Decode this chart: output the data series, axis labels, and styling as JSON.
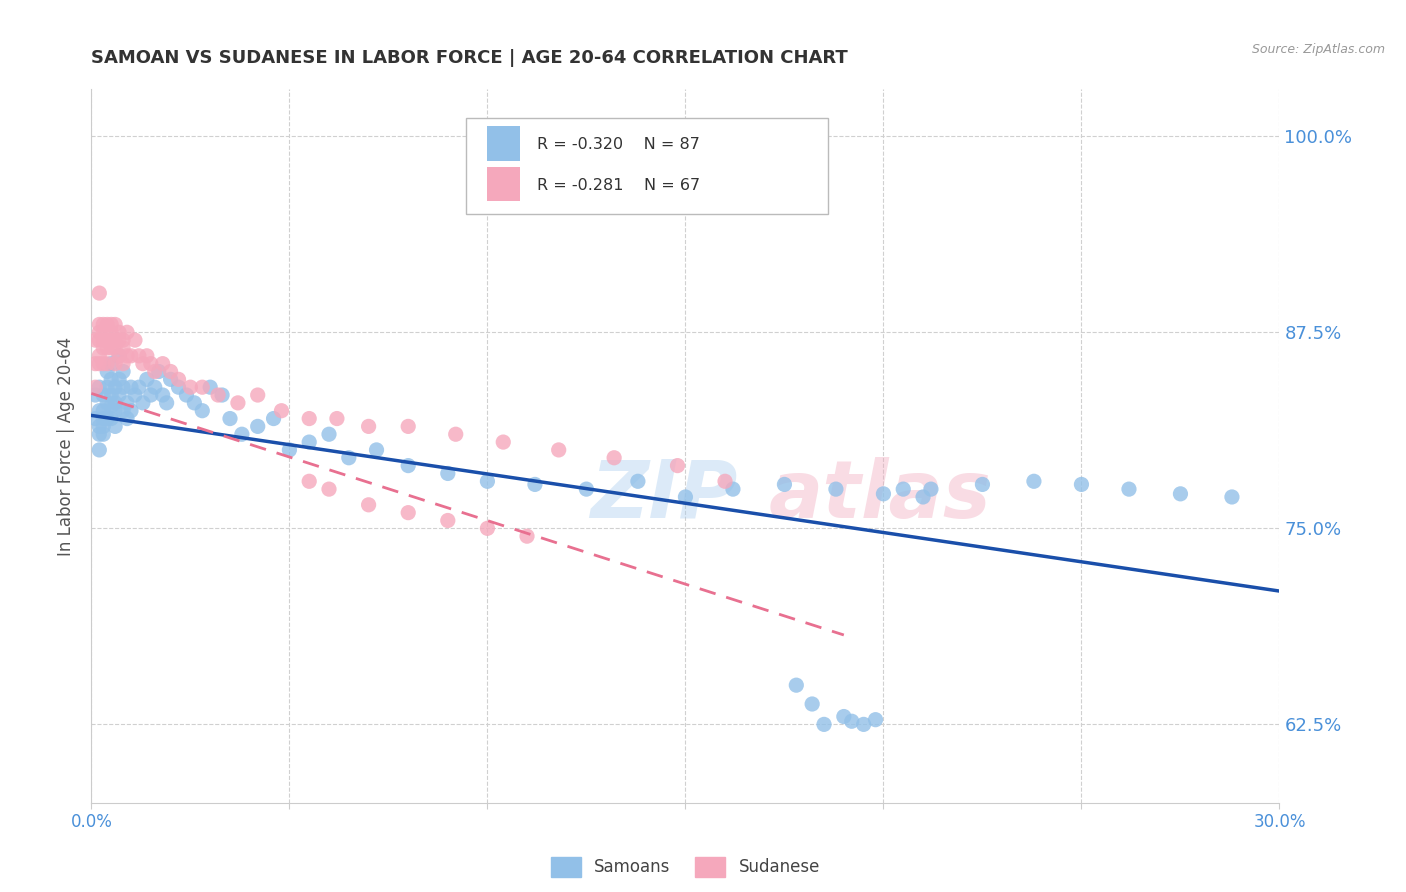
{
  "title": "SAMOAN VS SUDANESE IN LABOR FORCE | AGE 20-64 CORRELATION CHART",
  "source": "Source: ZipAtlas.com",
  "ylabel": "In Labor Force | Age 20-64",
  "xlim": [
    0.0,
    0.3
  ],
  "ylim": [
    0.575,
    1.03
  ],
  "yticks": [
    0.625,
    0.75,
    0.875,
    1.0
  ],
  "ytick_labels": [
    "62.5%",
    "75.0%",
    "87.5%",
    "100.0%"
  ],
  "samoans_R": -0.32,
  "samoans_N": 87,
  "sudanese_R": -0.281,
  "sudanese_N": 67,
  "samoan_color": "#92c0e8",
  "sudanese_color": "#f5a8bc",
  "trend_blue": "#1a4faa",
  "trend_pink": "#e87090",
  "axis_color": "#4a90d9",
  "grid_color": "#d0d0d0",
  "watermark": "ZIPAtlas",
  "samoans_x": [
    0.001,
    0.001,
    0.002,
    0.002,
    0.002,
    0.002,
    0.002,
    0.003,
    0.003,
    0.003,
    0.003,
    0.003,
    0.004,
    0.004,
    0.004,
    0.004,
    0.005,
    0.005,
    0.005,
    0.005,
    0.005,
    0.006,
    0.006,
    0.006,
    0.006,
    0.007,
    0.007,
    0.007,
    0.008,
    0.008,
    0.008,
    0.009,
    0.009,
    0.01,
    0.01,
    0.011,
    0.012,
    0.013,
    0.014,
    0.015,
    0.016,
    0.017,
    0.018,
    0.019,
    0.02,
    0.022,
    0.024,
    0.026,
    0.028,
    0.03,
    0.033,
    0.035,
    0.038,
    0.042,
    0.046,
    0.05,
    0.055,
    0.06,
    0.065,
    0.072,
    0.08,
    0.09,
    0.1,
    0.112,
    0.125,
    0.138,
    0.15,
    0.162,
    0.175,
    0.188,
    0.2,
    0.212,
    0.225,
    0.238,
    0.25,
    0.262,
    0.275,
    0.288,
    0.178,
    0.182,
    0.185,
    0.19,
    0.192,
    0.195,
    0.198,
    0.205,
    0.21
  ],
  "samoans_y": [
    0.82,
    0.835,
    0.81,
    0.8,
    0.815,
    0.825,
    0.84,
    0.82,
    0.815,
    0.825,
    0.81,
    0.835,
    0.83,
    0.82,
    0.84,
    0.85,
    0.828,
    0.835,
    0.82,
    0.845,
    0.855,
    0.83,
    0.84,
    0.825,
    0.815,
    0.835,
    0.845,
    0.86,
    0.84,
    0.825,
    0.85,
    0.83,
    0.82,
    0.84,
    0.825,
    0.835,
    0.84,
    0.83,
    0.845,
    0.835,
    0.84,
    0.85,
    0.835,
    0.83,
    0.845,
    0.84,
    0.835,
    0.83,
    0.825,
    0.84,
    0.835,
    0.82,
    0.81,
    0.815,
    0.82,
    0.8,
    0.805,
    0.81,
    0.795,
    0.8,
    0.79,
    0.785,
    0.78,
    0.778,
    0.775,
    0.78,
    0.77,
    0.775,
    0.778,
    0.775,
    0.772,
    0.775,
    0.778,
    0.78,
    0.778,
    0.775,
    0.772,
    0.77,
    0.65,
    0.638,
    0.625,
    0.63,
    0.627,
    0.625,
    0.628,
    0.775,
    0.77
  ],
  "sudanese_x": [
    0.001,
    0.001,
    0.001,
    0.002,
    0.002,
    0.002,
    0.002,
    0.002,
    0.002,
    0.003,
    0.003,
    0.003,
    0.003,
    0.003,
    0.004,
    0.004,
    0.004,
    0.004,
    0.005,
    0.005,
    0.005,
    0.005,
    0.006,
    0.006,
    0.006,
    0.006,
    0.007,
    0.007,
    0.007,
    0.008,
    0.008,
    0.008,
    0.009,
    0.009,
    0.01,
    0.011,
    0.012,
    0.013,
    0.014,
    0.015,
    0.016,
    0.018,
    0.02,
    0.022,
    0.025,
    0.028,
    0.032,
    0.037,
    0.042,
    0.048,
    0.055,
    0.062,
    0.07,
    0.08,
    0.092,
    0.104,
    0.118,
    0.132,
    0.148,
    0.16,
    0.055,
    0.06,
    0.07,
    0.08,
    0.09,
    0.1,
    0.11
  ],
  "sudanese_y": [
    0.84,
    0.855,
    0.87,
    0.9,
    0.88,
    0.87,
    0.86,
    0.875,
    0.855,
    0.88,
    0.865,
    0.875,
    0.855,
    0.87,
    0.865,
    0.88,
    0.87,
    0.855,
    0.87,
    0.88,
    0.865,
    0.875,
    0.865,
    0.88,
    0.87,
    0.855,
    0.875,
    0.86,
    0.87,
    0.865,
    0.855,
    0.87,
    0.86,
    0.875,
    0.86,
    0.87,
    0.86,
    0.855,
    0.86,
    0.855,
    0.85,
    0.855,
    0.85,
    0.845,
    0.84,
    0.84,
    0.835,
    0.83,
    0.835,
    0.825,
    0.82,
    0.82,
    0.815,
    0.815,
    0.81,
    0.805,
    0.8,
    0.795,
    0.79,
    0.78,
    0.78,
    0.775,
    0.765,
    0.76,
    0.755,
    0.75,
    0.745
  ]
}
